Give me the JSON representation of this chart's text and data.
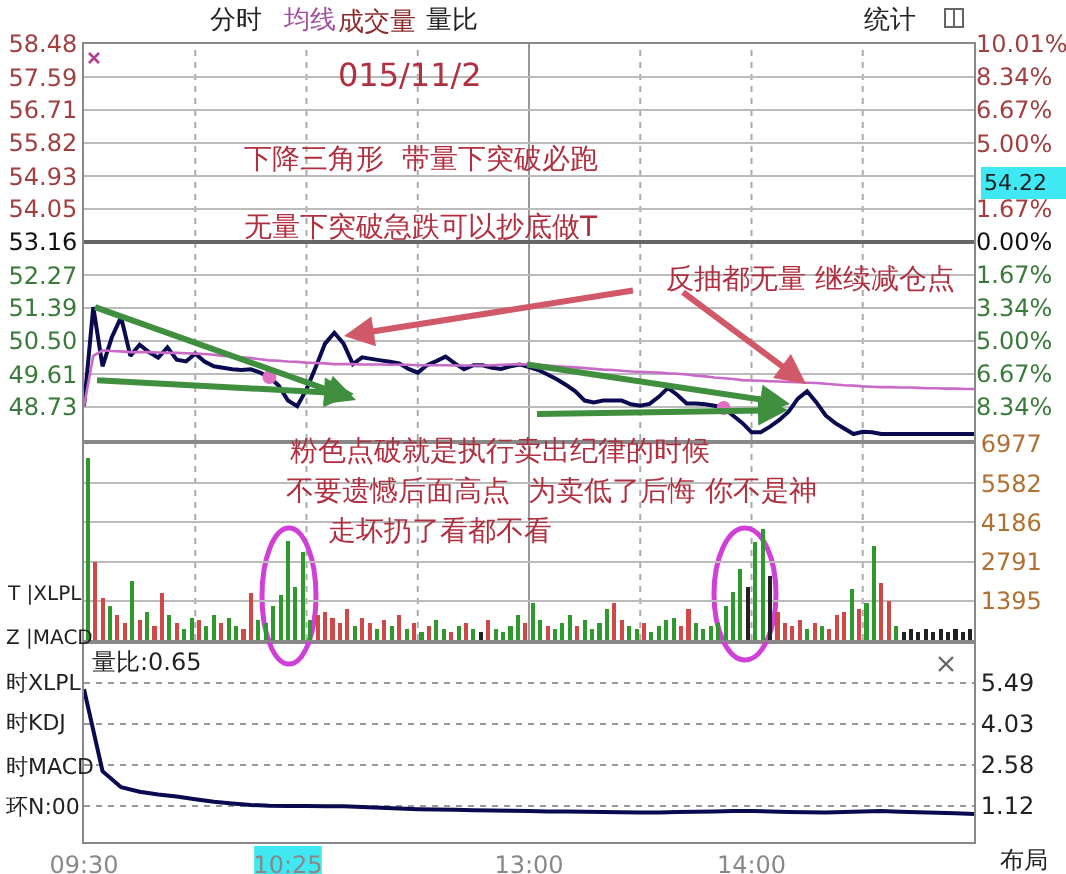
{
  "chart_data": [
    {
      "type": "line",
      "categories": [
        null,
        null,
        null,
        null,
        null,
        null,
        null,
        null,
        null,
        null,
        null,
        null,
        null,
        null,
        null,
        null,
        null,
        null,
        null,
        null,
        null,
        null,
        null,
        null,
        null,
        null,
        null,
        null,
        null,
        null,
        null,
        null,
        null,
        null,
        null,
        null,
        null,
        null,
        null,
        null,
        null,
        null,
        null,
        null,
        null,
        null,
        null,
        null,
        null,
        null,
        null,
        null,
        null,
        null,
        null,
        null,
        null,
        null,
        null,
        null,
        null,
        null,
        null,
        null,
        null,
        null,
        null,
        null,
        null,
        null,
        null,
        null,
        null,
        null,
        null,
        null,
        null,
        null,
        null,
        null,
        null,
        null,
        null,
        null,
        null,
        null,
        null,
        null,
        null,
        null,
        null,
        null,
        null,
        null,
        null,
        null,
        null
      ],
      "ylim": [
        47.84,
        58.48
      ],
      "yticks": [
        {
          "value": 48.73,
          "label": "48.73"
        },
        {
          "value": 49.61,
          "label": "49.61"
        },
        {
          "value": 50.5,
          "label": "50.50"
        },
        {
          "value": 51.39,
          "label": "51.39"
        },
        {
          "value": 52.27,
          "label": "52.27"
        },
        {
          "value": 53.16,
          "label": "53.16"
        },
        {
          "value": 54.05,
          "label": "54.05"
        },
        {
          "value": 54.93,
          "label": "54.93"
        },
        {
          "value": 55.82,
          "label": "55.82"
        },
        {
          "value": 56.71,
          "label": "56.71"
        },
        {
          "value": 57.59,
          "label": "57.59"
        },
        {
          "value": 58.48,
          "label": "58.48"
        }
      ],
      "y2lim": [
        -10.01,
        10.01
      ],
      "y2ticks": [
        {
          "value": -8.34,
          "label": "8.34%"
        },
        {
          "value": -6.67,
          "label": "6.67%"
        },
        {
          "value": -5,
          "label": "5.00%"
        },
        {
          "value": -3.34,
          "label": "3.34%"
        },
        {
          "value": -1.67,
          "label": "1.67%"
        },
        {
          "value": 0,
          "label": "0.00%"
        },
        {
          "value": 1.67,
          "label": "1.67%"
        },
        {
          "value": 3.34,
          "label": null
        },
        {
          "value": 5,
          "label": "5.00%"
        },
        {
          "value": 6.67,
          "label": "6.67%"
        },
        {
          "value": 8.34,
          "label": "8.34%"
        },
        {
          "value": 10.01,
          "label": "10.01%"
        }
      ],
      "tick_labels": "y",
      "grid": true,
      "series": [
        {
          "color": "#0a0a50",
          "values": [
            48.75,
            51.41,
            49.82,
            50.6,
            51.14,
            50.1,
            50.4,
            50.2,
            50.05,
            50.33,
            50.0,
            49.95,
            50.16,
            49.95,
            49.82,
            49.78,
            49.74,
            49.72,
            49.74,
            49.65,
            49.53,
            49.3,
            48.9,
            48.75,
            49.2,
            49.8,
            50.43,
            50.72,
            50.43,
            49.88,
            50.06,
            50.02,
            49.98,
            49.94,
            49.9,
            49.75,
            49.65,
            49.85,
            49.96,
            50.08,
            49.9,
            49.74,
            49.85,
            49.85,
            49.78,
            49.75,
            49.82,
            49.87,
            49.8,
            49.72,
            49.6,
            49.47,
            49.32,
            49.15,
            48.9,
            48.85,
            48.9,
            48.9,
            48.9,
            48.8,
            48.76,
            48.81,
            49.0,
            49.24,
            49.05,
            48.82,
            48.82,
            48.8,
            48.76,
            48.7,
            48.5,
            48.3,
            48.05,
            48.05,
            48.2,
            48.38,
            48.6,
            48.95,
            49.15,
            48.85,
            48.5,
            48.3,
            48.15,
            48.0,
            48.06,
            48.05,
            48.0,
            48.0,
            48.0,
            48.0,
            48.0,
            48.0,
            48.0,
            48.0,
            48.0,
            48.0,
            48.0
          ]
        },
        {
          "color": "#c86ac8",
          "values": [
            48.75,
            50.1,
            50.25,
            50.23,
            50.22,
            50.2,
            50.2,
            50.2,
            50.19,
            50.18,
            50.18,
            50.17,
            50.16,
            50.15,
            50.13,
            50.1,
            50.08,
            50.06,
            50.04,
            50.01,
            49.98,
            49.97,
            49.95,
            49.94,
            49.92,
            49.91,
            49.9,
            49.88,
            49.88,
            49.88,
            49.87,
            49.87,
            49.87,
            49.86,
            49.86,
            49.86,
            49.85,
            49.85,
            49.85,
            49.85,
            49.84,
            49.84,
            49.84,
            49.84,
            49.85,
            49.86,
            49.87,
            49.88,
            49.87,
            49.86,
            49.84,
            49.82,
            49.81,
            49.79,
            49.77,
            49.75,
            49.73,
            49.72,
            49.7,
            49.68,
            49.67,
            49.66,
            49.65,
            49.63,
            49.62,
            49.6,
            49.57,
            49.55,
            49.52,
            49.5,
            49.48,
            49.45,
            49.44,
            49.43,
            49.42,
            49.41,
            49.4,
            49.39,
            49.38,
            49.37,
            49.35,
            49.33,
            49.31,
            49.3,
            49.28,
            49.27,
            49.26,
            49.26,
            49.25,
            49.25,
            49.24,
            49.23,
            49.23,
            49.22,
            49.22,
            49.21,
            49.21
          ]
        },
        {
          "type": "scatter",
          "color": "#e070c0",
          "values": [
            null,
            null,
            null,
            null,
            null,
            null,
            null,
            null,
            null,
            null,
            null,
            null,
            null,
            null,
            null,
            null,
            null,
            null,
            null,
            null,
            49.53,
            null,
            null,
            null,
            null,
            null,
            null,
            null,
            null,
            null,
            null,
            null,
            null,
            null,
            null,
            null,
            null,
            null,
            null,
            null,
            null,
            null,
            null,
            null,
            null,
            null,
            null,
            null,
            null,
            null,
            null,
            null,
            null,
            null,
            null,
            null,
            null,
            null,
            null,
            null,
            null,
            null,
            null,
            null,
            null,
            null,
            null,
            null,
            null,
            48.7,
            null,
            null,
            null,
            null,
            null,
            null,
            null,
            null,
            null,
            null,
            null,
            null,
            null,
            null,
            null,
            null,
            null,
            null,
            null,
            null,
            null,
            null,
            null,
            null,
            null,
            null,
            null
          ]
        }
      ],
      "annotations": [
        "分时",
        "均线",
        "成交量",
        "量比",
        "统计",
        "015/11/2",
        "下降三角形  带量下突破必跑",
        "无量下突破急跌可以抄底做T",
        "反抽都无量 继续减仓点",
        "54.22"
      ]
    },
    {
      "type": "bar",
      "categories": [
        null,
        null,
        null,
        null,
        null,
        null,
        null,
        null,
        null,
        null,
        null,
        null,
        null,
        null,
        null,
        null,
        null,
        null,
        null,
        null,
        null,
        null,
        null,
        null,
        null,
        null,
        null,
        null,
        null,
        null,
        null,
        null,
        null,
        null,
        null,
        null,
        null,
        null,
        null,
        null,
        null,
        null,
        null,
        null,
        null,
        null,
        null,
        null,
        null,
        null,
        null,
        null,
        null,
        null,
        null,
        null,
        null,
        null,
        null,
        null,
        null,
        null,
        null,
        null,
        null,
        null,
        null,
        null,
        null,
        null,
        null,
        null,
        null,
        null,
        null,
        null,
        null,
        null,
        null,
        null,
        null,
        null,
        null,
        null,
        null,
        null,
        null,
        null,
        null,
        null,
        null,
        null,
        null,
        null,
        null,
        null,
        null,
        null,
        null,
        null,
        null,
        null,
        null,
        null,
        null,
        null,
        null,
        null,
        null,
        null,
        null,
        null,
        null,
        null,
        null,
        null,
        null,
        null,
        null,
        null
      ],
      "ylim": [
        0,
        6977
      ],
      "yticks": [
        1395,
        2791,
        4186,
        5582,
        6977
      ],
      "tick_labels": "y",
      "grid": true,
      "values": [
        6480,
        2760,
        1500,
        1200,
        900,
        600,
        2090,
        700,
        1000,
        500,
        1680,
        900,
        600,
        400,
        800,
        700,
        500,
        900,
        600,
        800,
        500,
        400,
        1680,
        700,
        600,
        1200,
        1600,
        3530,
        1900,
        3120,
        700,
        900,
        1000,
        800,
        600,
        1100,
        500,
        800,
        600,
        400,
        700,
        500,
        900,
        400,
        600,
        300,
        500,
        700,
        400,
        300,
        500,
        600,
        400,
        300,
        700,
        400,
        300,
        500,
        900,
        600,
        1300,
        700,
        500,
        400,
        600,
        900,
        500,
        700,
        400,
        600,
        1100,
        1300,
        700,
        500,
        400,
        600,
        300,
        500,
        700,
        800,
        500,
        1100,
        600,
        400,
        500,
        600,
        1200,
        1700,
        2520,
        1900,
        3480,
        3960,
        2280,
        1000,
        600,
        500,
        700,
        400,
        600,
        500,
        400,
        900,
        1000,
        1800,
        1100,
        1300,
        3360,
        2040,
        1400,
        500,
        300,
        400,
        300,
        400,
        300,
        400,
        300,
        400,
        300,
        400
      ],
      "colors": [
        "#2e9a2e",
        "#d04848",
        "#d04848",
        "#2e9a2e",
        "#d04848",
        "#d04848",
        "#2e9a2e",
        "#d04848",
        "#2e9a2e",
        "#d04848",
        "#d04848",
        "#2e9a2e",
        "#d04848",
        "#2e9a2e",
        "#2e9a2e",
        "#d04848",
        "#2e9a2e",
        "#2e9a2e",
        "#d04848",
        "#2e9a2e",
        "#2e9a2e",
        "#d04848",
        "#d04848",
        "#2e9a2e",
        "#2e9a2e",
        "#2e9a2e",
        "#2e9a2e",
        "#2e9a2e",
        "#2e9a2e",
        "#2e9a2e",
        "#2e9a2e",
        "#d04848",
        "#d04848",
        "#d04848",
        "#d04848",
        "#d04848",
        "#2e9a2e",
        "#d04848",
        "#d04848",
        "#2e9a2e",
        "#d04848",
        "#2e9a2e",
        "#d04848",
        "#2e9a2e",
        "#d04848",
        "#2e9a2e",
        "#d04848",
        "#2e9a2e",
        "#2e9a2e",
        "#d04848",
        "#2e9a2e",
        "#d04848",
        "#2e9a2e",
        "#222222",
        "#d04848",
        "#2e9a2e",
        "#2e9a2e",
        "#2e9a2e",
        "#2e9a2e",
        "#d04848",
        "#2e9a2e",
        "#2e9a2e",
        "#d04848",
        "#2e9a2e",
        "#2e9a2e",
        "#2e9a2e",
        "#d04848",
        "#2e9a2e",
        "#2e9a2e",
        "#2e9a2e",
        "#2e9a2e",
        "#d04848",
        "#d04848",
        "#2e9a2e",
        "#2e9a2e",
        "#d04848",
        "#2e9a2e",
        "#2e9a2e",
        "#2e9a2e",
        "#2e9a2e",
        "#d04848",
        "#d04848",
        "#2e9a2e",
        "#2e9a2e",
        "#2e9a2e",
        "#2e9a2e",
        "#2e9a2e",
        "#2e9a2e",
        "#2e9a2e",
        "#222222",
        "#2e9a2e",
        "#2e9a2e",
        "#222222",
        "#d04848",
        "#d04848",
        "#d04848",
        "#d04848",
        "#2e9a2e",
        "#d04848",
        "#2e9a2e",
        "#d04848",
        "#d04848",
        "#d04848",
        "#2e9a2e",
        "#d04848",
        "#2e9a2e",
        "#2e9a2e",
        "#d04848",
        "#d04848",
        "#2e9a2e",
        "#222222",
        "#222222",
        "#222222",
        "#222222",
        "#222222",
        "#222222",
        "#222222",
        "#222222",
        "#222222",
        "#222222"
      ],
      "annotations": [
        "粉色点破就是执行卖出纪律的时候",
        "不要遗憾后面高点  为卖低了后悔 你不是神",
        "走坏扔了看都不看",
        "T |XLPL",
        "Z |MACD"
      ]
    },
    {
      "type": "line",
      "categories": [
        "09:30",
        null,
        null,
        null,
        null,
        null,
        null,
        null,
        null,
        null,
        null,
        "10:25",
        null,
        null,
        null,
        null,
        null,
        null,
        null,
        null,
        null,
        null,
        null,
        null,
        "13:00",
        null,
        null,
        null,
        null,
        null,
        null,
        null,
        null,
        null,
        null,
        null,
        "14:00",
        null,
        null,
        null,
        null,
        null,
        null,
        null,
        null,
        null,
        null,
        null,
        null
      ],
      "ylim": [
        -0.17,
        6.88
      ],
      "yticks": [
        1.12,
        2.58,
        4.03,
        5.49
      ],
      "grid": "y",
      "series": [
        {
          "color": "#0a0a50",
          "values": [
            5.27,
            2.35,
            1.78,
            1.62,
            1.52,
            1.45,
            1.35,
            1.26,
            1.2,
            1.15,
            1.12,
            1.11,
            1.11,
            1.1,
            1.1,
            1.08,
            1.05,
            1.02,
            1.0,
            0.99,
            0.98,
            0.96,
            0.95,
            0.94,
            0.93,
            0.92,
            0.92,
            0.91,
            0.9,
            0.89,
            0.88,
            0.88,
            0.9,
            0.91,
            0.92,
            0.93,
            0.93,
            0.92,
            0.9,
            0.89,
            0.88,
            0.9,
            0.92,
            0.93,
            0.91,
            0.89,
            0.87,
            0.85,
            0.83
          ]
        }
      ],
      "annotations": [
        "量比:0.65",
        "时XLPL",
        "时KDJ",
        "时MACD",
        "环N:00",
        "布局"
      ]
    }
  ]
}
